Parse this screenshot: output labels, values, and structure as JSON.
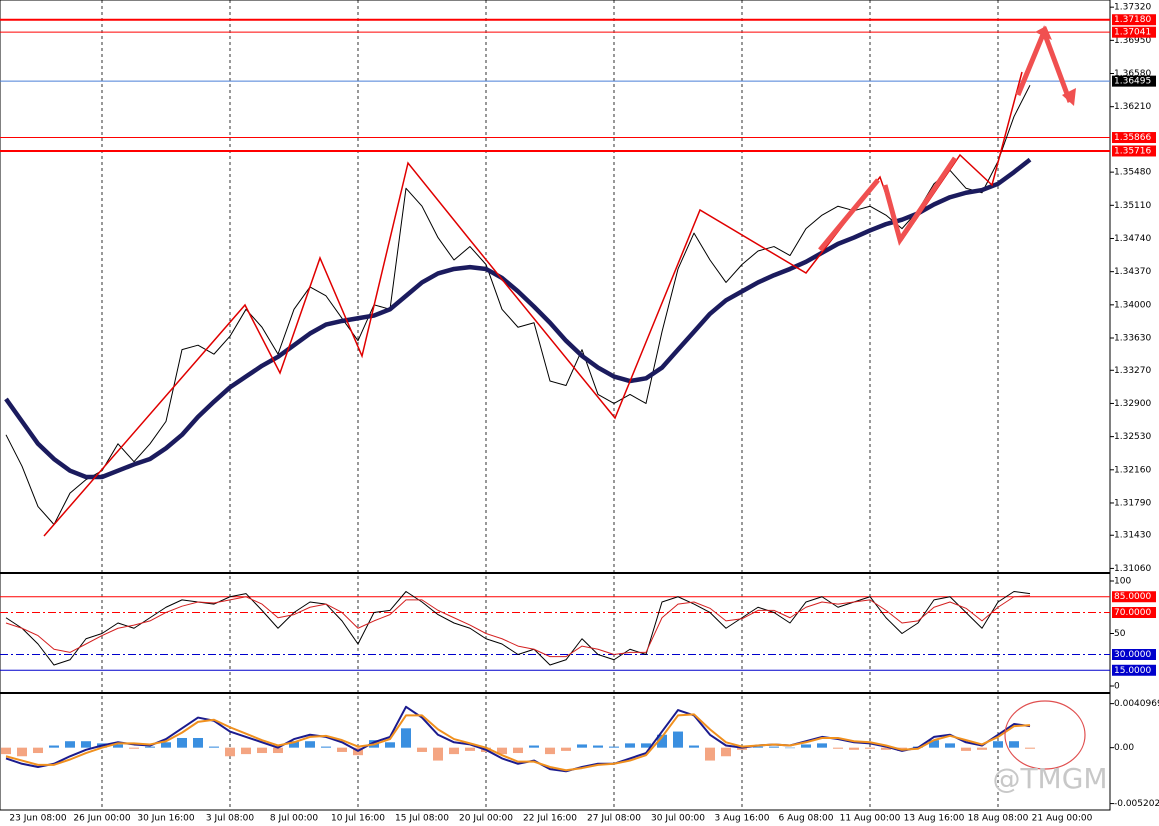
{
  "watermark": "@TMGM",
  "chart_data": [
    {
      "type": "line",
      "categories": [
        null,
        null,
        "23 Jun 08:00",
        null,
        null,
        null,
        "26 Jun 00:00",
        null,
        null,
        null,
        "30 Jun 16:00",
        null,
        null,
        null,
        "3 Jul 08:00",
        null,
        null,
        null,
        "8 Jul 00:00",
        null,
        null,
        null,
        "10 Jul 16:00",
        null,
        null,
        null,
        "15 Jul 08:00",
        null,
        null,
        null,
        "20 Jul 00:00",
        null,
        null,
        null,
        "22 Jul 16:00",
        null,
        null,
        null,
        "27 Jul 08:00",
        null,
        null,
        null,
        "30 Jul 00:00",
        null,
        null,
        null,
        "3 Aug 16:00",
        null,
        null,
        null,
        "6 Aug 08:00",
        null,
        null,
        null,
        "11 Aug 00:00",
        null,
        null,
        null,
        "13 Aug 16:00",
        null,
        null,
        null,
        "18 Aug 08:00",
        null,
        null,
        null,
        "21 Aug 00:00"
      ],
      "series": [
        {
          "color": "#000000",
          "style": "thin",
          "values": [
            1.3255,
            1.322,
            1.3175,
            1.3155,
            1.319,
            1.3205,
            1.3215,
            1.3245,
            1.3225,
            1.3245,
            1.327,
            1.335,
            1.3355,
            1.3345,
            1.3365,
            1.3395,
            1.3375,
            1.3345,
            1.3395,
            1.342,
            1.341,
            1.3385,
            1.336,
            1.34,
            1.3395,
            1.353,
            1.351,
            1.3475,
            1.345,
            1.3465,
            1.3445,
            1.3395,
            1.3375,
            1.338,
            1.3315,
            1.331,
            1.335,
            1.33,
            1.329,
            1.33,
            1.329,
            1.337,
            1.344,
            1.348,
            1.345,
            1.3425,
            1.3445,
            1.346,
            1.3465,
            1.3455,
            1.3485,
            1.35,
            1.351,
            1.3505,
            1.351,
            1.35,
            1.3485,
            1.3505,
            1.3535,
            1.355,
            1.353,
            1.3525,
            1.356,
            1.361,
            1.3645,
            null,
            null
          ]
        },
        {
          "color": "#1b1b5e",
          "style": "thick",
          "values": [
            1.3295,
            1.327,
            1.3245,
            1.3228,
            1.3215,
            1.3208,
            1.3208,
            1.3215,
            1.3222,
            1.3228,
            1.324,
            1.3255,
            1.3275,
            1.3292,
            1.3308,
            1.332,
            1.3332,
            1.3342,
            1.3355,
            1.3368,
            1.3378,
            1.3382,
            1.3385,
            1.3388,
            1.3395,
            1.341,
            1.3425,
            1.3435,
            1.344,
            1.3442,
            1.344,
            1.343,
            1.3415,
            1.3398,
            1.338,
            1.336,
            1.3343,
            1.333,
            1.332,
            1.3315,
            1.3318,
            1.333,
            1.335,
            1.337,
            1.339,
            1.3405,
            1.3415,
            1.3425,
            1.3433,
            1.344,
            1.3448,
            1.3458,
            1.3468,
            1.3475,
            1.3483,
            1.349,
            1.3495,
            1.3502,
            1.3512,
            1.352,
            1.3525,
            1.3528,
            1.3535,
            1.3548,
            1.3562,
            null,
            null
          ]
        }
      ],
      "ylim": [
        1.3102,
        1.374
      ],
      "yticks": [
        {
          "value": 1.3732,
          "label": "1.37320"
        },
        {
          "value": 1.3695,
          "label": "1.36950"
        },
        {
          "value": 1.3658,
          "label": "1.36580"
        },
        {
          "value": 1.3621,
          "label": "1.36210"
        },
        {
          "value": 1.3548,
          "label": "1.35480"
        },
        {
          "value": 1.3511,
          "label": "1.35110"
        },
        {
          "value": 1.3474,
          "label": "1.34740"
        },
        {
          "value": 1.3437,
          "label": "1.34370"
        },
        {
          "value": 1.34,
          "label": "1.34000"
        },
        {
          "value": 1.3363,
          "label": "1.33630"
        },
        {
          "value": 1.3327,
          "label": "1.33270"
        },
        {
          "value": 1.329,
          "label": "1.32900"
        },
        {
          "value": 1.3253,
          "label": "1.32530"
        },
        {
          "value": 1.3216,
          "label": "1.32160"
        },
        {
          "value": 1.3179,
          "label": "1.31790"
        },
        {
          "value": 1.3143,
          "label": "1.31430"
        },
        {
          "value": 1.3106,
          "label": "1.31060"
        }
      ],
      "levels": [
        {
          "value": 1.3718,
          "label": "1.37180",
          "color": "#ff0000",
          "style": "thick"
        },
        {
          "value": 1.37041,
          "label": "1.37041",
          "color": "#ff0000",
          "style": "thin"
        },
        {
          "value": 1.36495,
          "label": "1.36495",
          "color": "#4a7fd6",
          "style": "thin",
          "box": "#000000"
        },
        {
          "value": 1.35866,
          "label": "1.35866",
          "color": "#ff0000",
          "style": "thin"
        },
        {
          "value": 1.35716,
          "label": "1.35716",
          "color": "#ff0000",
          "style": "thick"
        }
      ],
      "grid": true
    },
    {
      "type": "line",
      "series": [
        {
          "color": "#000000",
          "style": "thin",
          "values": [
            65,
            55,
            40,
            20,
            25,
            45,
            50,
            60,
            55,
            65,
            75,
            82,
            80,
            78,
            85,
            88,
            72,
            55,
            70,
            80,
            78,
            62,
            40,
            70,
            72,
            90,
            80,
            68,
            60,
            55,
            45,
            40,
            30,
            35,
            20,
            25,
            45,
            30,
            25,
            35,
            30,
            80,
            85,
            78,
            70,
            55,
            65,
            75,
            70,
            60,
            80,
            85,
            75,
            80,
            85,
            65,
            50,
            60,
            82,
            85,
            70,
            55,
            80,
            90,
            88,
            null,
            null
          ]
        },
        {
          "color": "#d42020",
          "style": "thin",
          "values": [
            60,
            55,
            48,
            35,
            32,
            40,
            48,
            55,
            58,
            62,
            70,
            76,
            80,
            79,
            82,
            85,
            78,
            65,
            68,
            75,
            78,
            70,
            55,
            62,
            68,
            82,
            82,
            72,
            65,
            58,
            50,
            45,
            38,
            35,
            28,
            28,
            38,
            35,
            30,
            32,
            32,
            65,
            78,
            80,
            74,
            62,
            64,
            72,
            72,
            65,
            75,
            80,
            78,
            80,
            82,
            72,
            60,
            62,
            75,
            80,
            74,
            62,
            75,
            85,
            86,
            null,
            null
          ]
        }
      ],
      "ylim": [
        -5.7,
        105.7
      ],
      "yticks": [
        100,
        50,
        0
      ],
      "levels": [
        {
          "value": 85,
          "label": "85.0000",
          "color": "#ff0000",
          "style": "solid"
        },
        {
          "value": 70,
          "label": "70.0000",
          "color": "#ff0000",
          "style": "dash-dot"
        },
        {
          "value": 30,
          "label": "30.0000",
          "color": "#0000cc",
          "style": "dash-dot"
        },
        {
          "value": 15,
          "label": "15.0000",
          "color": "#0000cc",
          "style": "solid"
        }
      ]
    },
    {
      "type": "macd",
      "series": [
        {
          "kind": "bar",
          "color": "#3a8fe0",
          "negative_color": "#f4a582",
          "values": [
            -0.0006,
            -0.0008,
            -0.0005,
            0.0002,
            0.0006,
            0.0006,
            0.0004,
            0.0003,
            -0.0001,
            0.0001,
            0.0005,
            0.0009,
            0.0009,
            0.0001,
            -0.0008,
            -0.0006,
            -0.0005,
            -0.0005,
            0.0006,
            0.0006,
            0.0001,
            -0.0004,
            -0.0007,
            0.0007,
            0.0005,
            0.0018,
            -0.0004,
            -0.0012,
            -0.0006,
            -0.0003,
            -0.0004,
            -0.0006,
            -0.0005,
            0.0002,
            -0.0006,
            -0.0003,
            0.0003,
            0.0002,
            0.0001,
            0.0004,
            0.0004,
            0.0012,
            0.0015,
            0.0002,
            -0.0012,
            -0.0008,
            -0.0002,
            0.0001,
            0.0001,
            0,
            0.0003,
            0.0004,
            -0.0001,
            -0.0002,
            -0.0001,
            -0.0002,
            -0.0003,
            0.0001,
            0.0007,
            0.0004,
            -0.0003,
            -0.0002,
            0.0006,
            0.0006,
            -0.0001,
            null,
            null
          ]
        },
        {
          "kind": "line",
          "color": "#1b1b8e",
          "values": [
            -0.001,
            -0.0015,
            -0.0018,
            -0.0015,
            -0.0008,
            -0.0002,
            0.0002,
            0.0005,
            0.0003,
            0.0002,
            0.0008,
            0.0018,
            0.0028,
            0.0025,
            0.0015,
            0.001,
            0.0005,
            0,
            0.0008,
            0.0012,
            0.001,
            0.0005,
            -0.0003,
            0.0005,
            0.001,
            0.0038,
            0.0028,
            0.0012,
            0.0005,
            0.0003,
            -0.0002,
            -0.001,
            -0.0015,
            -0.0012,
            -0.002,
            -0.0022,
            -0.0018,
            -0.0015,
            -0.0015,
            -0.001,
            -0.0005,
            0.0015,
            0.0035,
            0.003,
            0.0012,
            0.0002,
            0,
            0.0002,
            0.0003,
            0.0002,
            0.0006,
            0.001,
            0.0008,
            0.0005,
            0.0004,
            0.0001,
            -0.0003,
            0,
            0.001,
            0.0012,
            0.0005,
            0.0002,
            0.0012,
            0.0022,
            0.002,
            null,
            null
          ]
        },
        {
          "kind": "line",
          "color": "#f0901e",
          "values": [
            -0.0008,
            -0.0012,
            -0.0016,
            -0.0016,
            -0.0011,
            -0.0005,
            0,
            0.0004,
            0.0004,
            0.0003,
            0.0006,
            0.0014,
            0.0024,
            0.0026,
            0.0019,
            0.0013,
            0.0007,
            0.0002,
            0.0005,
            0.001,
            0.0011,
            0.0007,
            0.0001,
            0.0003,
            0.0008,
            0.003,
            0.003,
            0.0017,
            0.0008,
            0.0004,
            0,
            -0.0007,
            -0.0013,
            -0.0013,
            -0.0018,
            -0.0021,
            -0.0019,
            -0.0016,
            -0.0015,
            -0.0012,
            -0.0007,
            0.001,
            0.003,
            0.0031,
            0.0017,
            0.0005,
            0.0001,
            0.0002,
            0.0003,
            0.0002,
            0.0005,
            0.0009,
            0.0009,
            0.0006,
            0.0005,
            0.0002,
            -0.0002,
            -0.0001,
            0.0007,
            0.0011,
            0.0007,
            0.0003,
            0.001,
            0.002,
            0.0021,
            null,
            null
          ]
        }
      ],
      "ylim": [
        -0.0058,
        0.0049
      ],
      "yticks": [
        0.0040969,
        {
          "value": 0,
          "label": "0.00"
        },
        -0.005202
      ]
    }
  ]
}
